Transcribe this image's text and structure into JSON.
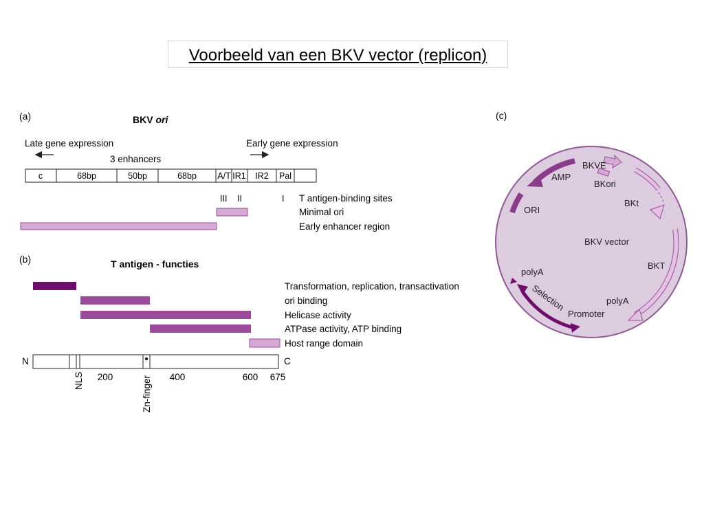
{
  "title": "Voorbeeld van een BKV vector  (replicon)",
  "panel_a": {
    "label": "(a)",
    "heading_main": "BKV ",
    "heading_italic": "ori",
    "late_label": "Late gene expression",
    "early_label": "Early gene expression",
    "enhancers_label": "3 enhancers",
    "segments": [
      "c",
      "68bp",
      "50bp",
      "68bp",
      "A/T",
      "IR1",
      "IR2",
      "Pal"
    ],
    "site_markers": [
      "III",
      "II",
      "I"
    ],
    "legend": [
      "T antigen-binding sites",
      "Minimal ori",
      "Early enhancer region"
    ]
  },
  "panel_b": {
    "label": "(b)",
    "heading": "T antigen - functies",
    "functions": [
      "Transformation, replication, transactivation",
      "ori binding",
      "Helicase activity",
      "ATPase activity, ATP binding",
      "Host range domain"
    ],
    "n_label": "N",
    "c_label": "C",
    "ticks": [
      "200",
      "400",
      "600",
      "675"
    ],
    "nls_label": "NLS",
    "zn_label": "Zn-finger"
  },
  "panel_c": {
    "label": "(c)",
    "center_label": "BKV vector",
    "elements": [
      "AMP",
      "ORI",
      "BKVE",
      "BKori",
      "BKt",
      "BKT",
      "polyA",
      "polyA",
      "Selection",
      "Promoter"
    ]
  },
  "colors": {
    "dark_purple": "#6b0f6b",
    "mid_purple": "#9a4b99",
    "light_purple": "#d4a9d4",
    "circle_fill": "#ddcbe0",
    "circle_stroke": "#8d5a92"
  }
}
